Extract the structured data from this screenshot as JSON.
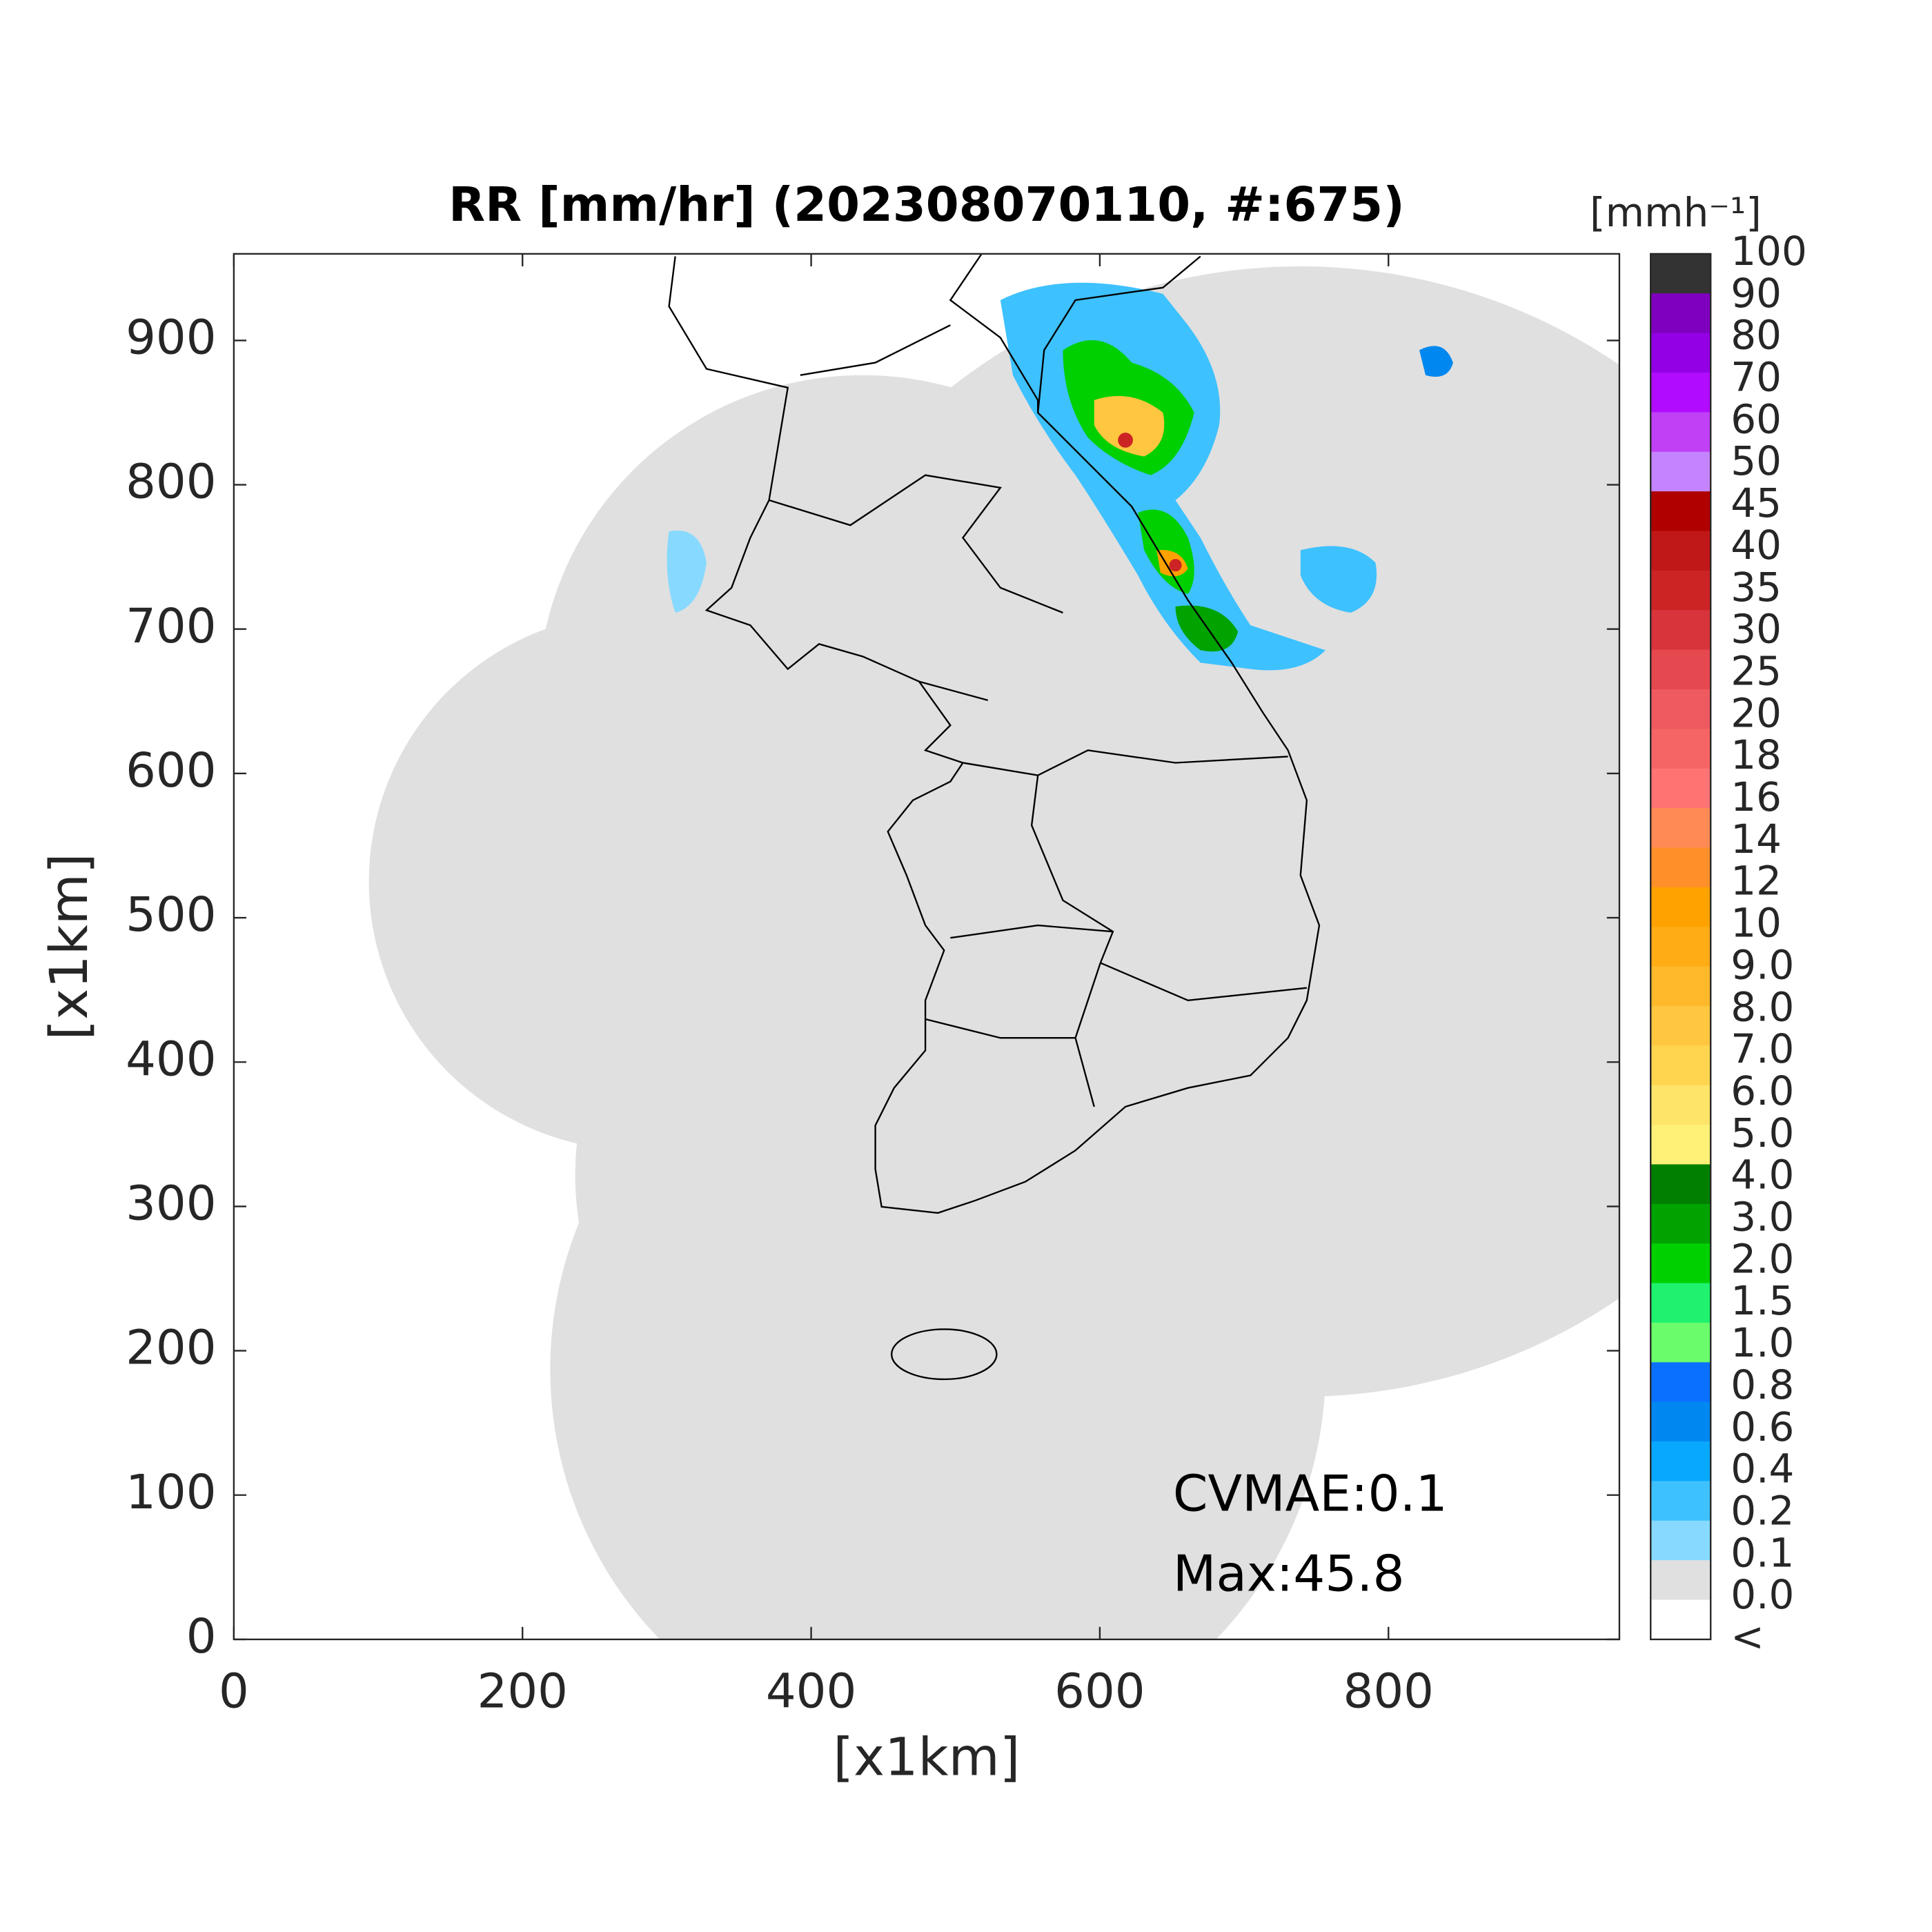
{
  "chart_data": {
    "type": "map",
    "title": "RR [mm/hr] (202308070110, #:675)",
    "xlabel": "[x1km]",
    "ylabel": "[x1km]",
    "xlim": [
      0,
      960
    ],
    "ylim": [
      0,
      960
    ],
    "xticks": [
      0,
      200,
      400,
      600,
      800
    ],
    "yticks": [
      0,
      100,
      200,
      300,
      400,
      500,
      600,
      700,
      800,
      900
    ],
    "annotations": [
      "CVMAE:0.1",
      "Max:45.8"
    ],
    "colorbar": {
      "label": "[mmh⁻¹]",
      "levels": [
        "100",
        "90",
        "80",
        "70",
        "60",
        "50",
        "45",
        "40",
        "35",
        "30",
        "25",
        "20",
        "18",
        "16",
        "14",
        "12",
        "10",
        "9.0",
        "8.0",
        "7.0",
        "6.0",
        "5.0",
        "4.0",
        "3.0",
        "2.0",
        "1.5",
        "1.0",
        "0.8",
        "0.6",
        "0.4",
        "0.2",
        "0.1",
        "0.0",
        "<"
      ],
      "colors": [
        "#333333",
        "#7f00bf",
        "#9300e6",
        "#b10cff",
        "#c040f5",
        "#c584ff",
        "#b00000",
        "#c01818",
        "#cc2424",
        "#d8343c",
        "#e64850",
        "#ee5a5f",
        "#f56565",
        "#ff7373",
        "#ff8a55",
        "#ff8f28",
        "#ffa200",
        "#ffac15",
        "#ffb92a",
        "#ffc640",
        "#ffd550",
        "#ffe46a",
        "#fff078",
        "#007f00",
        "#00a300",
        "#00d000",
        "#1ef26e",
        "#6bfc6b",
        "#0a70ff",
        "#0088f0",
        "#08a8ff",
        "#3ec1ff",
        "#87d9ff",
        "#e0e0e0",
        "#ffffff"
      ]
    }
  }
}
